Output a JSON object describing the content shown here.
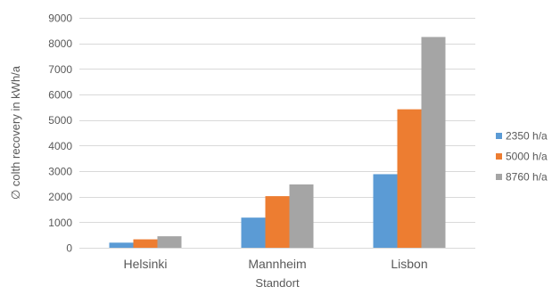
{
  "chart_data": {
    "type": "bar",
    "title": "",
    "xlabel": "Standort",
    "ylabel": "∅ colth recovery in kWh/a",
    "categories": [
      "Helsinki",
      "Mannheim",
      "Lisbon"
    ],
    "ylim": [
      0,
      9000
    ],
    "yticks": [
      0,
      1000,
      2000,
      3000,
      4000,
      5000,
      6000,
      7000,
      8000,
      9000
    ],
    "grid": true,
    "legend_position": "right",
    "series": [
      {
        "name": "2350 h/a",
        "color": "#5b9bd5",
        "values": [
          200,
          1180,
          2880
        ]
      },
      {
        "name": "5000 h/a",
        "color": "#ed7d31",
        "values": [
          330,
          2020,
          5420
        ]
      },
      {
        "name": "8760 h/a",
        "color": "#a5a5a5",
        "values": [
          450,
          2480,
          8250
        ]
      }
    ]
  }
}
